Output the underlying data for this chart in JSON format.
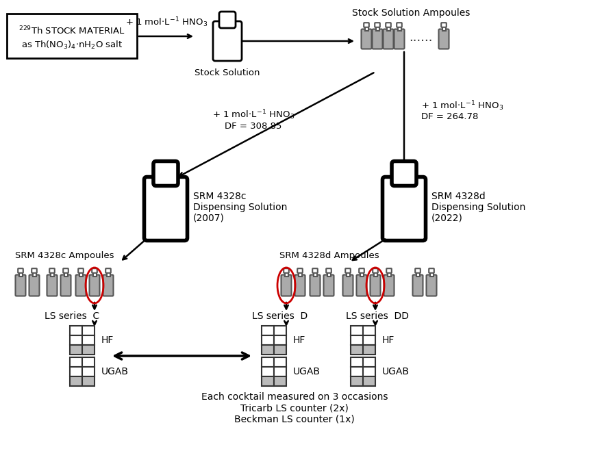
{
  "bg_color": "#ffffff",
  "box_label_line1": "$^{229}$Th STOCK MATERIAL",
  "box_label_line2": "as Th(NO$_3$)$_4$$\\cdot$nH$_2$O salt",
  "stock_solution_label": "Stock Solution",
  "stock_ampoules_label": "Stock Solution Ampoules",
  "arrow1_label": "+ 1 mol$\\cdot$L$^{-1}$ HNO$_3$",
  "arrow_diag_left_line1": "+ 1 mol$\\cdot$L$^{-1}$ HNO$_3$",
  "arrow_diag_left_line2": "DF = 308.85",
  "arrow_right_line1": "+ 1 mol$\\cdot$L$^{-1}$ HNO$_3$",
  "arrow_right_line2": "DF = 264.78",
  "srm4328c_line1": "SRM 4328c",
  "srm4328c_line2": "Dispensing Solution",
  "srm4328c_line3": "(2007)",
  "srm4328d_line1": "SRM 4328d",
  "srm4328d_line2": "Dispensing Solution",
  "srm4328d_line3": "(2022)",
  "srm4328c_ampoules_label": "SRM 4328c Ampoules",
  "srm4328d_ampoules_label": "SRM 4328d Ampoules",
  "ls_c_label": "LS series  C",
  "ls_d_label": "LS series  D",
  "ls_dd_label": "LS series  DD",
  "hf_label": "HF",
  "ugab_label": "UGAB",
  "bottom_line1": "Each cocktail measured on 3 occasions",
  "bottom_line2": "Tricarb LS counter (2x)",
  "bottom_line3": "Beckman LS counter (1x)"
}
